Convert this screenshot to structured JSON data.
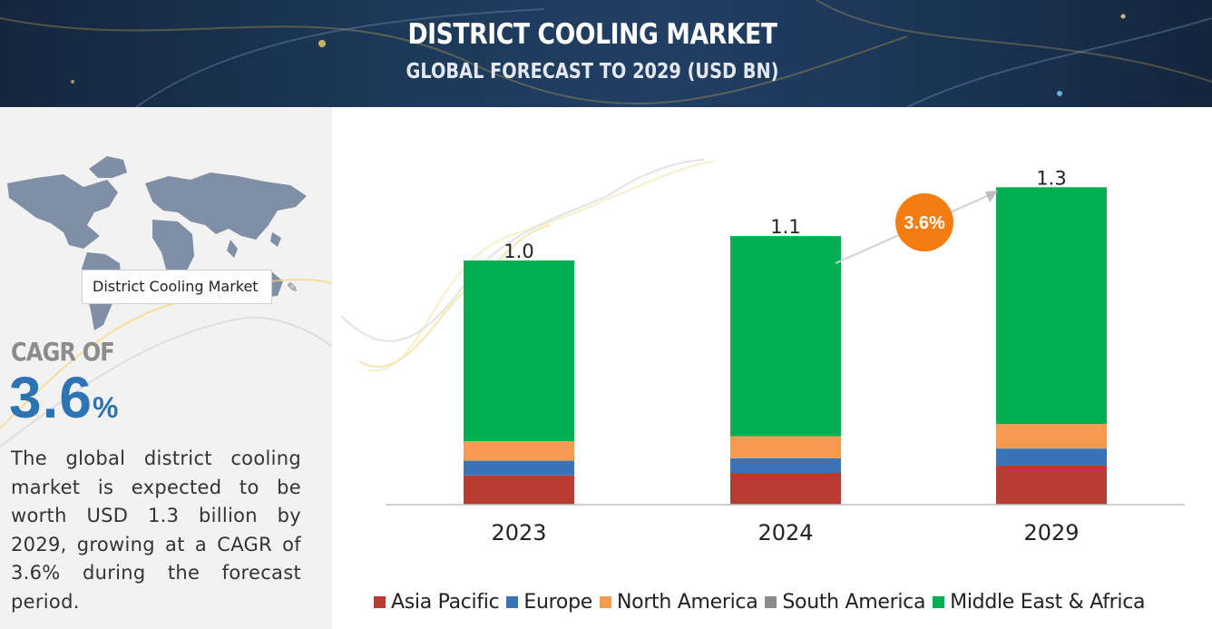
{
  "banner": {
    "title": "DISTRICT COOLING MARKET",
    "subtitle": "GLOBAL FORECAST TO 2029 (USD BN)"
  },
  "left_panel": {
    "map_tooltip": "District Cooling Market",
    "cagr_label": "CAGR OF",
    "cagr_number": "3.6",
    "cagr_percent": "%",
    "description": "The global district cooling market is expected to be worth USD 1.3 billion by 2029, growing at a CAGR of 3.6% during the forecast period.",
    "icons": [
      "world-map-icon",
      "pencil-icon"
    ]
  },
  "chart_data": {
    "type": "bar",
    "stacked": true,
    "categories": [
      "2023",
      "2024",
      "2029"
    ],
    "totals": [
      1.0,
      1.1,
      1.3
    ],
    "total_labels": [
      "1.0",
      "1.1",
      "1.3"
    ],
    "series": [
      {
        "name": "Asia Pacific",
        "color": "#b83c32",
        "values": [
          0.12,
          0.13,
          0.16
        ]
      },
      {
        "name": "Europe",
        "color": "#3a74b8",
        "values": [
          0.06,
          0.06,
          0.07
        ]
      },
      {
        "name": "North America",
        "color": "#f59a4e",
        "values": [
          0.08,
          0.09,
          0.1
        ]
      },
      {
        "name": "South America",
        "color": "#8c8c8c",
        "values": [
          0.0,
          0.0,
          0.0
        ]
      },
      {
        "name": "Middle East & Africa",
        "color": "#00b050",
        "values": [
          0.74,
          0.82,
          0.97
        ]
      }
    ],
    "cagr_badge": "3.6%",
    "cagr_badge_color": "#f47c10",
    "legend_position": "bottom",
    "grid": false
  }
}
